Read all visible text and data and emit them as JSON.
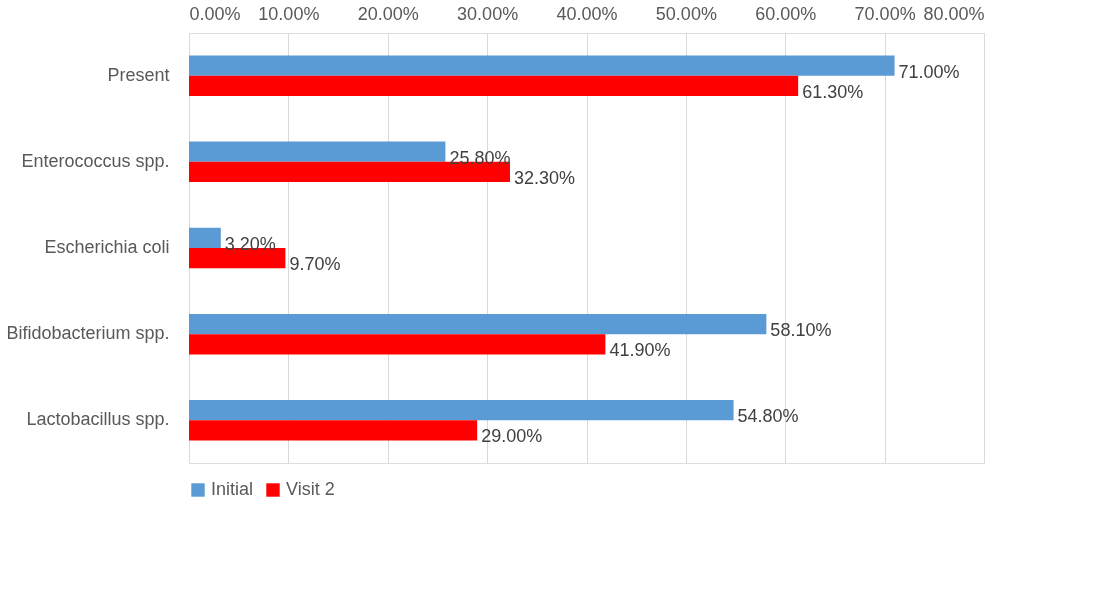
{
  "chart_data": {
    "type": "bar",
    "orientation": "horizontal",
    "categories": [
      "Present",
      "Enterococcus spp.",
      "Escherichia coli",
      "Bifidobacterium spp.",
      "Lactobacillus spp."
    ],
    "series": [
      {
        "name": "Initial",
        "color": "#5b9bd5",
        "values": [
          71.0,
          25.8,
          3.2,
          58.1,
          54.8
        ],
        "value_labels": [
          "71.00%",
          "25.80%",
          "3.20%",
          "58.10%",
          "54.80%"
        ]
      },
      {
        "name": "Visit 2",
        "color": "#ff0000",
        "values": [
          61.3,
          32.3,
          9.7,
          41.9,
          29.0
        ],
        "value_labels": [
          "61.30%",
          "32.30%",
          "9.70%",
          "41.90%",
          "29.00%"
        ]
      }
    ],
    "xlim": [
      0,
      80
    ],
    "xticks": [
      {
        "value": 0,
        "label": "0.00%"
      },
      {
        "value": 10,
        "label": "10.00%"
      },
      {
        "value": 20,
        "label": "20.00%"
      },
      {
        "value": 30,
        "label": "30.00%"
      },
      {
        "value": 40,
        "label": "40.00%"
      },
      {
        "value": 50,
        "label": "50.00%"
      },
      {
        "value": 60,
        "label": "60.00%"
      },
      {
        "value": 70,
        "label": "70.00%"
      },
      {
        "value": 80,
        "label": "80.00%"
      }
    ],
    "grid": "x",
    "legend": "bottom"
  }
}
